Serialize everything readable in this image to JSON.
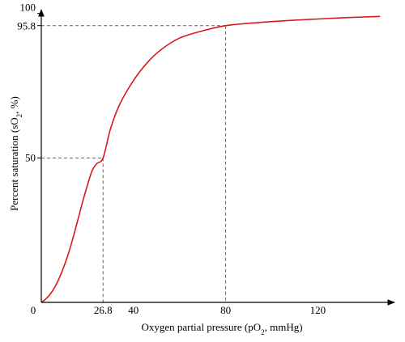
{
  "chart_data": {
    "type": "line",
    "xlabel": {
      "main": "Oxygen partial pressure (pO",
      "sub": "2",
      "tail": ", mmHg)"
    },
    "ylabel": {
      "main": "Percent saturation (sO",
      "sub": "2",
      "tail": ", %)"
    },
    "xlim": [
      0,
      150
    ],
    "ylim": [
      0,
      100
    ],
    "xticks": [
      {
        "value": 0,
        "label": "0"
      },
      {
        "value": 26.8,
        "label": "26.8"
      },
      {
        "value": 40,
        "label": "40"
      },
      {
        "value": 80,
        "label": "80"
      },
      {
        "value": 120,
        "label": "120"
      }
    ],
    "yticks": [
      {
        "value": 50,
        "label": "50"
      },
      {
        "value": 95.8,
        "label": "95.8"
      },
      {
        "value": 100,
        "label": "100"
      }
    ],
    "reference_lines": [
      {
        "x": 26.8,
        "y": 50
      },
      {
        "x": 80,
        "y": 95.8
      }
    ],
    "series": [
      {
        "color": "#d7191c",
        "x": [
          0,
          2,
          4,
          6,
          8,
          10,
          12,
          14,
          16,
          18,
          20,
          22,
          24,
          26.8,
          30,
          34,
          40,
          46,
          52,
          60,
          70,
          80,
          90,
          100,
          110,
          120,
          130,
          140,
          147
        ],
        "y": [
          0,
          1.2,
          3.0,
          5.5,
          8.8,
          12.8,
          17.5,
          23.0,
          29.0,
          35.0,
          40.5,
          45.5,
          48.0,
          50,
          60,
          68.5,
          76.8,
          83.0,
          87.5,
          91.5,
          94.0,
          95.8,
          96.6,
          97.2,
          97.7,
          98.1,
          98.5,
          98.8,
          99.0
        ]
      }
    ],
    "grid": false,
    "legend": "none"
  }
}
